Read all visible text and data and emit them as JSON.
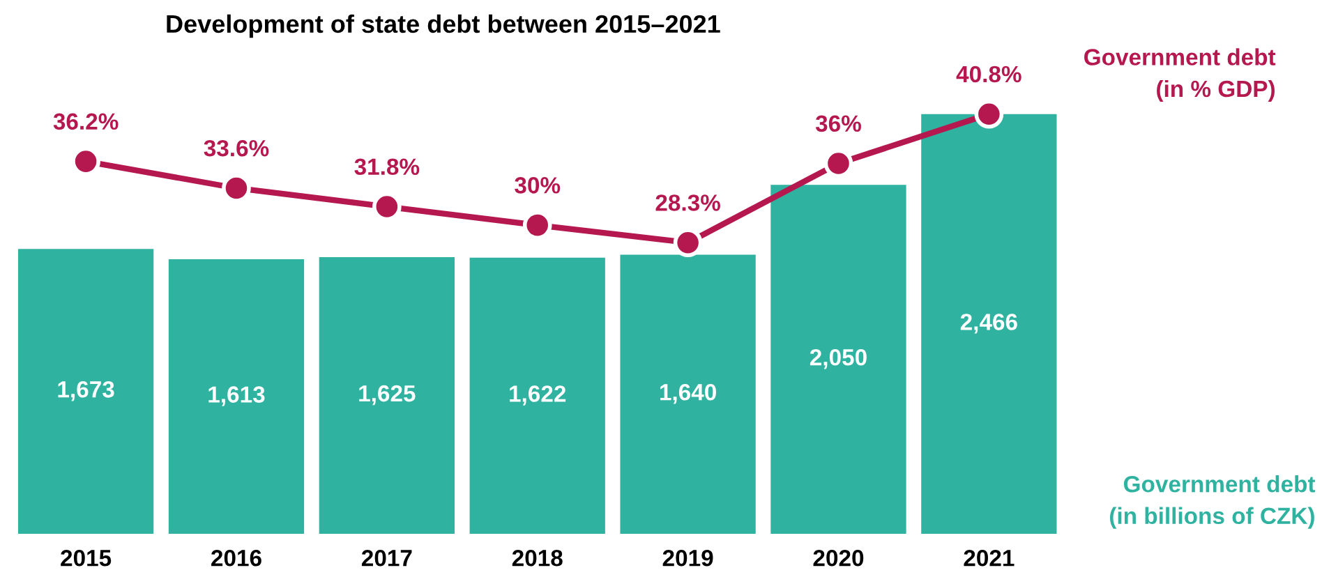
{
  "chart_data": {
    "type": "bar",
    "title": "Development of state debt between 2015–2021",
    "categories": [
      "2015",
      "2016",
      "2017",
      "2018",
      "2019",
      "2020",
      "2021"
    ],
    "series": [
      {
        "name": "Government debt\n(in billions of CZK)",
        "color": "#2fb3a0",
        "values": [
          1673,
          1613,
          1625,
          1622,
          1640,
          2050,
          2466
        ],
        "value_labels": [
          "1,673",
          "1,613",
          "1,625",
          "1,622",
          "1,640",
          "2,050",
          "2,466"
        ]
      },
      {
        "name": "Government debt\n(in % GDP)",
        "type": "line",
        "axis": "y2",
        "color": "#b5174f",
        "marker": "circle",
        "line_style": "solid",
        "values": [
          36.2,
          33.6,
          31.8,
          30,
          28.3,
          36,
          40.8
        ],
        "value_labels": [
          "36.2%",
          "33.6%",
          "31.8%",
          "30%",
          "28.3%",
          "36%",
          "40.8%"
        ]
      }
    ],
    "tick_labels": "x",
    "data_labels": true,
    "legend": false,
    "grid": false
  }
}
